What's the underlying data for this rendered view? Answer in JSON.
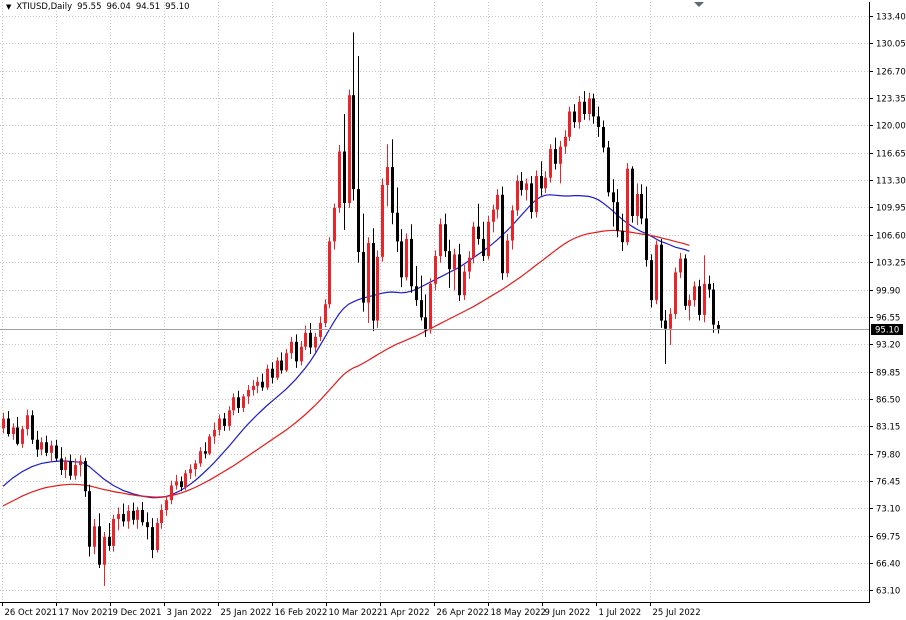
{
  "header": {
    "symbol_timeframe": "XTIUSD,Daily",
    "open": "95.55",
    "high": "96.04",
    "low": "94.51",
    "close": "95.10"
  },
  "icons": {
    "menu": "triangle-down-icon",
    "scroll_marker": "triangle-down-icon"
  },
  "colors": {
    "background": "#ffffff",
    "grid": "#c8c8c8",
    "bull_candle": "#e8252a",
    "bear_candle": "#000000",
    "ma_fast": "#1c1ccc",
    "ma_slow": "#e41b1b",
    "price_tag_bg": "#000000"
  },
  "chart_data": {
    "type": "candlestick",
    "title": "XTIUSD,Daily",
    "grid": true,
    "y_axis_side": "right",
    "ylim": [
      63.1,
      133.4
    ],
    "yticks": [
      "133.40",
      "130.05",
      "126.70",
      "123.35",
      "120.00",
      "116.65",
      "113.30",
      "109.95",
      "106.60",
      "103.25",
      "99.90",
      "96.55",
      "93.20",
      "89.85",
      "86.50",
      "83.15",
      "79.80",
      "76.45",
      "73.10",
      "69.75",
      "66.40",
      "63.10"
    ],
    "xticks": [
      "26 Oct 2021",
      "17 Nov 2021",
      "9 Dec 2021",
      "3 Jan 2022",
      "25 Jan 2022",
      "16 Feb 2022",
      "10 Mar 2022",
      "1 Apr 2022",
      "26 Apr 2022",
      "18 May 2022",
      "9 Jun 2022",
      "1 Jul 2022",
      "25 Jul 2022"
    ],
    "current_price": "95.10",
    "ohlc": [
      [
        82.9,
        84.8,
        82.3,
        84.1
      ],
      [
        84.1,
        85.0,
        81.9,
        82.2
      ],
      [
        82.2,
        83.5,
        81.5,
        83.0
      ],
      [
        83.0,
        84.3,
        80.8,
        81.0
      ],
      [
        81.0,
        83.2,
        80.5,
        82.8
      ],
      [
        82.8,
        85.2,
        82.0,
        84.5
      ],
      [
        84.5,
        85.1,
        81.0,
        81.5
      ],
      [
        81.5,
        82.6,
        79.4,
        80.3
      ],
      [
        80.3,
        81.8,
        79.6,
        81.2
      ],
      [
        81.2,
        82.0,
        79.5,
        79.9
      ],
      [
        79.9,
        81.4,
        78.8,
        80.8
      ],
      [
        80.8,
        81.5,
        78.9,
        79.2
      ],
      [
        79.2,
        80.6,
        77.2,
        77.8
      ],
      [
        77.8,
        79.4,
        76.8,
        78.9
      ],
      [
        78.9,
        79.7,
        76.6,
        77.1
      ],
      [
        77.1,
        79.2,
        76.6,
        78.4
      ],
      [
        78.4,
        79.6,
        77.0,
        78.9
      ],
      [
        78.9,
        79.3,
        74.5,
        75.2
      ],
      [
        75.2,
        76.0,
        67.2,
        68.4
      ],
      [
        68.4,
        71.8,
        67.5,
        70.9
      ],
      [
        70.9,
        72.5,
        65.8,
        66.2
      ],
      [
        66.2,
        70.2,
        63.6,
        69.6
      ],
      [
        69.6,
        71.3,
        67.9,
        68.5
      ],
      [
        68.5,
        72.3,
        67.8,
        71.8
      ],
      [
        71.8,
        73.2,
        70.4,
        72.4
      ],
      [
        72.4,
        73.7,
        70.9,
        71.5
      ],
      [
        71.5,
        73.5,
        70.6,
        72.8
      ],
      [
        72.8,
        73.8,
        71.1,
        71.7
      ],
      [
        71.7,
        73.3,
        70.6,
        72.9
      ],
      [
        72.9,
        73.9,
        71.0,
        71.4
      ],
      [
        71.4,
        72.6,
        69.3,
        70.8
      ],
      [
        70.8,
        71.9,
        67.0,
        68.0
      ],
      [
        68.0,
        71.9,
        67.7,
        71.3
      ],
      [
        71.3,
        73.6,
        70.6,
        72.9
      ],
      [
        72.9,
        74.6,
        72.2,
        74.1
      ],
      [
        74.1,
        76.5,
        73.6,
        75.9
      ],
      [
        75.9,
        77.2,
        75.4,
        76.4
      ],
      [
        76.4,
        77.0,
        75.2,
        75.7
      ],
      [
        75.7,
        77.8,
        75.3,
        77.4
      ],
      [
        77.4,
        78.5,
        76.7,
        77.9
      ],
      [
        77.9,
        79.0,
        77.0,
        78.6
      ],
      [
        78.6,
        80.6,
        78.2,
        80.1
      ],
      [
        80.1,
        81.2,
        79.2,
        79.8
      ],
      [
        79.8,
        82.2,
        79.6,
        81.9
      ],
      [
        81.9,
        83.6,
        81.0,
        82.7
      ],
      [
        82.7,
        84.6,
        82.0,
        84.1
      ],
      [
        84.1,
        84.8,
        82.6,
        83.2
      ],
      [
        83.2,
        85.6,
        82.6,
        85.1
      ],
      [
        85.1,
        87.2,
        84.5,
        86.7
      ],
      [
        86.7,
        87.5,
        84.8,
        85.4
      ],
      [
        85.4,
        87.1,
        84.9,
        86.8
      ],
      [
        86.8,
        88.2,
        85.9,
        87.6
      ],
      [
        87.6,
        88.8,
        86.9,
        88.1
      ],
      [
        88.1,
        89.2,
        87.2,
        88.6
      ],
      [
        88.6,
        89.6,
        87.5,
        87.9
      ],
      [
        87.9,
        90.7,
        87.6,
        90.2
      ],
      [
        90.2,
        91.0,
        88.4,
        89.1
      ],
      [
        89.1,
        91.6,
        88.8,
        91.2
      ],
      [
        91.2,
        92.2,
        89.6,
        90.0
      ],
      [
        90.0,
        92.6,
        89.8,
        92.1
      ],
      [
        92.1,
        94.1,
        91.4,
        93.5
      ],
      [
        93.5,
        94.4,
        90.3,
        91.1
      ],
      [
        91.1,
        93.6,
        90.6,
        92.9
      ],
      [
        92.9,
        95.5,
        92.5,
        94.6
      ],
      [
        94.6,
        95.8,
        92.0,
        92.8
      ],
      [
        92.8,
        94.6,
        92.2,
        94.1
      ],
      [
        94.1,
        96.6,
        93.6,
        95.8
      ],
      [
        95.8,
        98.7,
        95.3,
        98.1
      ],
      [
        98.1,
        106.3,
        97.6,
        105.8
      ],
      [
        105.8,
        110.4,
        104.8,
        109.9
      ],
      [
        109.9,
        117.6,
        109.3,
        116.8
      ],
      [
        116.8,
        121.4,
        107.2,
        110.5
      ],
      [
        110.5,
        124.4,
        109.9,
        123.7
      ],
      [
        123.7,
        131.4,
        110.8,
        112.2
      ],
      [
        112.2,
        128.5,
        103.2,
        104.5
      ],
      [
        104.5,
        109.2,
        97.2,
        98.3
      ],
      [
        98.3,
        106.3,
        95.8,
        105.6
      ],
      [
        105.6,
        107.4,
        94.8,
        96.1
      ],
      [
        96.1,
        104.7,
        95.2,
        103.9
      ],
      [
        103.9,
        113.5,
        103.3,
        112.7
      ],
      [
        112.7,
        117.7,
        110.1,
        114.9
      ],
      [
        114.9,
        118.3,
        107.9,
        109.3
      ],
      [
        109.3,
        112.4,
        104.5,
        105.8
      ],
      [
        105.8,
        107.3,
        100.2,
        101.4
      ],
      [
        101.4,
        106.8,
        101.0,
        106.1
      ],
      [
        106.1,
        107.9,
        99.5,
        100.3
      ],
      [
        100.3,
        102.8,
        97.9,
        98.6
      ],
      [
        98.6,
        101.6,
        96.1,
        96.5
      ],
      [
        96.5,
        99.3,
        94.1,
        94.9
      ],
      [
        94.9,
        101.3,
        94.5,
        100.6
      ],
      [
        100.6,
        104.7,
        99.8,
        104.0
      ],
      [
        104.0,
        108.6,
        103.2,
        107.9
      ],
      [
        107.9,
        109.2,
        103.9,
        104.6
      ],
      [
        104.6,
        106.0,
        100.1,
        102.4
      ],
      [
        102.4,
        104.9,
        99.8,
        104.2
      ],
      [
        104.2,
        105.5,
        98.5,
        99.2
      ],
      [
        99.2,
        102.9,
        98.6,
        102.1
      ],
      [
        102.1,
        104.6,
        101.2,
        103.8
      ],
      [
        103.8,
        108.2,
        103.1,
        107.6
      ],
      [
        107.6,
        110.4,
        105.4,
        106.1
      ],
      [
        106.1,
        108.2,
        103.4,
        104.0
      ],
      [
        104.0,
        108.9,
        103.6,
        108.2
      ],
      [
        108.2,
        110.3,
        106.9,
        109.7
      ],
      [
        109.7,
        112.2,
        108.6,
        111.5
      ],
      [
        111.5,
        112.5,
        101.1,
        101.9
      ],
      [
        101.9,
        106.7,
        101.4,
        105.9
      ],
      [
        105.9,
        110.2,
        104.8,
        109.6
      ],
      [
        109.6,
        113.9,
        108.9,
        113.2
      ],
      [
        113.2,
        114.3,
        111.4,
        112.1
      ],
      [
        112.1,
        113.5,
        110.8,
        112.9
      ],
      [
        112.9,
        113.8,
        108.6,
        109.4
      ],
      [
        109.4,
        114.5,
        108.7,
        113.8
      ],
      [
        113.8,
        115.6,
        111.4,
        112.3
      ],
      [
        112.3,
        114.4,
        111.7,
        113.6
      ],
      [
        113.6,
        117.7,
        113.0,
        117.1
      ],
      [
        117.1,
        118.5,
        114.6,
        115.3
      ],
      [
        115.3,
        118.1,
        112.9,
        117.4
      ],
      [
        117.4,
        119.4,
        116.5,
        118.6
      ],
      [
        118.6,
        122.3,
        118.1,
        121.7
      ],
      [
        121.7,
        122.6,
        119.7,
        120.4
      ],
      [
        120.4,
        123.6,
        119.6,
        122.9
      ],
      [
        122.9,
        124.2,
        120.7,
        121.4
      ],
      [
        121.4,
        124.0,
        120.6,
        123.3
      ],
      [
        123.3,
        123.9,
        120.2,
        121.1
      ],
      [
        121.1,
        122.3,
        118.6,
        119.8
      ],
      [
        119.8,
        120.6,
        116.7,
        117.3
      ],
      [
        117.3,
        118.1,
        111.3,
        111.8
      ],
      [
        111.8,
        113.4,
        107.6,
        110.6
      ],
      [
        110.6,
        112.2,
        106.3,
        107.1
      ],
      [
        107.1,
        109.2,
        104.6,
        105.7
      ],
      [
        105.7,
        115.4,
        105.3,
        114.7
      ],
      [
        114.7,
        115.0,
        108.1,
        108.9
      ],
      [
        108.9,
        112.9,
        107.8,
        111.6
      ],
      [
        111.6,
        112.8,
        107.9,
        108.6
      ],
      [
        108.6,
        112.5,
        102.7,
        103.5
      ],
      [
        103.5,
        104.2,
        97.7,
        98.6
      ],
      [
        98.6,
        105.9,
        98.1,
        105.4
      ],
      [
        105.4,
        106.1,
        95.2,
        96.1
      ],
      [
        96.1,
        97.4,
        90.8,
        95.1
      ],
      [
        95.1,
        97.6,
        93.1,
        96.9
      ],
      [
        96.9,
        102.6,
        96.3,
        102.0
      ],
      [
        102.0,
        104.4,
        101.3,
        103.7
      ],
      [
        103.7,
        104.2,
        97.4,
        97.9
      ],
      [
        97.9,
        99.3,
        96.1,
        98.6
      ],
      [
        98.6,
        100.9,
        97.8,
        100.3
      ],
      [
        100.3,
        101.1,
        96.1,
        96.8
      ],
      [
        96.8,
        104.1,
        95.9,
        100.6
      ],
      [
        100.6,
        101.6,
        98.9,
        99.9
      ],
      [
        99.9,
        100.7,
        94.6,
        95.6
      ],
      [
        95.55,
        96.04,
        94.51,
        95.1
      ]
    ],
    "series": [
      {
        "name": "",
        "color": "#1c1ccc",
        "values": [
          75.8,
          76.3,
          76.8,
          77.2,
          77.6,
          77.9,
          78.2,
          78.4,
          78.6,
          78.7,
          78.8,
          78.85,
          78.9,
          78.9,
          78.85,
          78.8,
          78.75,
          78.6,
          78.2,
          77.7,
          77.2,
          76.7,
          76.3,
          75.9,
          75.6,
          75.3,
          75.1,
          74.9,
          74.75,
          74.6,
          74.5,
          74.42,
          74.4,
          74.45,
          74.55,
          74.75,
          75.0,
          75.3,
          75.65,
          76.05,
          76.5,
          77.0,
          77.55,
          78.1,
          78.7,
          79.35,
          80.0,
          80.65,
          81.35,
          82.05,
          82.75,
          83.4,
          84.0,
          84.6,
          85.15,
          85.7,
          86.2,
          86.7,
          87.2,
          87.7,
          88.3,
          88.9,
          89.6,
          90.3,
          91.1,
          92.0,
          93.0,
          94.0,
          95.0,
          96.0,
          96.9,
          97.6,
          98.1,
          98.4,
          98.65,
          98.85,
          99.0,
          99.15,
          99.3,
          99.45,
          99.55,
          99.6,
          99.55,
          99.5,
          99.55,
          99.7,
          99.9,
          100.2,
          100.5,
          100.8,
          101.1,
          101.4,
          101.7,
          102.0,
          102.3,
          102.6,
          103.0,
          103.4,
          103.8,
          104.2,
          104.6,
          105.05,
          105.5,
          106.0,
          106.55,
          107.1,
          107.7,
          108.35,
          109.0,
          109.65,
          110.3,
          110.85,
          111.25,
          111.45,
          111.5,
          111.45,
          111.4,
          111.35,
          111.35,
          111.4,
          111.4,
          111.35,
          111.3,
          111.15,
          110.9,
          110.5,
          110.05,
          109.55,
          109.0,
          108.5,
          108.05,
          107.65,
          107.3,
          107.0,
          106.75,
          106.45,
          106.1,
          105.8,
          105.6,
          105.35,
          105.1,
          104.95,
          104.8,
          104.6
        ]
      },
      {
        "name": "",
        "color": "#e41b1b",
        "values": [
          73.4,
          73.7,
          74.0,
          74.3,
          74.6,
          74.85,
          75.1,
          75.3,
          75.5,
          75.65,
          75.75,
          75.85,
          75.95,
          76.0,
          76.05,
          76.05,
          76.0,
          75.95,
          75.85,
          75.7,
          75.55,
          75.4,
          75.3,
          75.15,
          75.05,
          74.95,
          74.85,
          74.75,
          74.65,
          74.6,
          74.55,
          74.5,
          74.48,
          74.5,
          74.55,
          74.65,
          74.8,
          74.95,
          75.15,
          75.4,
          75.65,
          75.95,
          76.25,
          76.55,
          76.9,
          77.25,
          77.6,
          77.95,
          78.3,
          78.7,
          79.1,
          79.5,
          79.9,
          80.3,
          80.7,
          81.1,
          81.5,
          81.9,
          82.3,
          82.7,
          83.15,
          83.6,
          84.1,
          84.6,
          85.15,
          85.7,
          86.3,
          86.95,
          87.6,
          88.25,
          88.9,
          89.5,
          89.95,
          90.3,
          90.55,
          90.85,
          91.2,
          91.55,
          91.9,
          92.25,
          92.6,
          92.9,
          93.2,
          93.45,
          93.7,
          93.95,
          94.2,
          94.5,
          94.8,
          95.1,
          95.4,
          95.7,
          96.0,
          96.3,
          96.6,
          96.9,
          97.2,
          97.5,
          97.8,
          98.15,
          98.5,
          98.85,
          99.2,
          99.55,
          99.9,
          100.3,
          100.7,
          101.1,
          101.5,
          101.95,
          102.4,
          102.85,
          103.3,
          103.75,
          104.2,
          104.65,
          105.1,
          105.5,
          105.85,
          106.15,
          106.4,
          106.6,
          106.75,
          106.85,
          106.95,
          107.05,
          107.1,
          107.15,
          107.1,
          107.05,
          107.0,
          106.9,
          106.8,
          106.7,
          106.6,
          106.5,
          106.4,
          106.25,
          106.1,
          105.95,
          105.8,
          105.65,
          105.5,
          105.3
        ]
      }
    ]
  }
}
